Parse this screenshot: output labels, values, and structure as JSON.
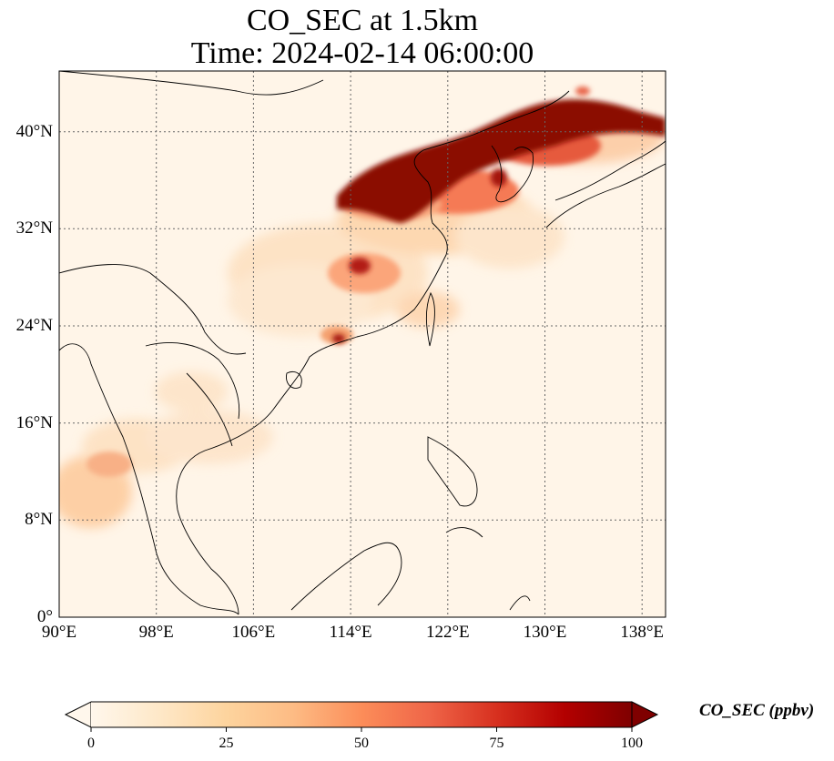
{
  "title_line1": "CO_SEC at 1.5km",
  "title_line2": "Time: 2024-02-14 06:00:00",
  "map": {
    "variable": "CO_SEC",
    "level": "1.5km",
    "time": "2024-02-14 06:00:00",
    "lon_range": [
      90,
      139
    ],
    "lat_range": [
      0,
      45
    ],
    "gridlines": "dotted",
    "colormap": "OrRd",
    "lat_ticks": [
      {
        "value": 0,
        "label": "0°"
      },
      {
        "value": 8,
        "label": "8°N"
      },
      {
        "value": 16,
        "label": "16°N"
      },
      {
        "value": 24,
        "label": "24°N"
      },
      {
        "value": 32,
        "label": "32°N"
      },
      {
        "value": 40,
        "label": "40°N"
      }
    ],
    "lon_ticks": [
      {
        "value": 90,
        "label": "90°E"
      },
      {
        "value": 98,
        "label": "98°E"
      },
      {
        "value": 106,
        "label": "106°E"
      },
      {
        "value": 114,
        "label": "114°E"
      },
      {
        "value": 122,
        "label": "122°E"
      },
      {
        "value": 130,
        "label": "130°E"
      },
      {
        "value": 138,
        "label": "138°E"
      }
    ]
  },
  "colorbar": {
    "label": "CO_SEC (ppbv)",
    "min": 0,
    "max": 100,
    "extend": "both",
    "ticks": [
      {
        "value": 0,
        "label": "0"
      },
      {
        "value": 25,
        "label": "25"
      },
      {
        "value": 50,
        "label": "50"
      },
      {
        "value": 75,
        "label": "75"
      },
      {
        "value": 100,
        "label": "100"
      }
    ],
    "colors": [
      "#fff7ec",
      "#fee8c8",
      "#fdd49e",
      "#fdbb84",
      "#fc8d59",
      "#ef6548",
      "#d7301f",
      "#b30000",
      "#7f0000"
    ]
  }
}
